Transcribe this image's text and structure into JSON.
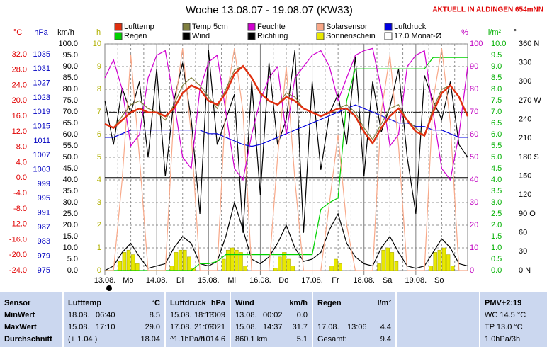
{
  "chart_data": {
    "type": "line",
    "title": "Woche 13.08.07 - 19.08.07 (KW33)",
    "note": "AKTUELL IN ALDINGEN 654mNN",
    "xlim": [
      0,
      168
    ],
    "xticks": [
      {
        "value": 0,
        "label": "13.08."
      },
      {
        "value": 24,
        "label": "14.08."
      },
      {
        "value": 48,
        "label": "15.08."
      },
      {
        "value": 72,
        "label": "16.08."
      },
      {
        "value": 96,
        "label": "17.08."
      },
      {
        "value": 120,
        "label": "18.08."
      },
      {
        "value": 144,
        "label": "19.08."
      }
    ],
    "weekdays": [
      "Mo",
      "Di",
      "Mi",
      "Do",
      "Fr",
      "Sa",
      "So"
    ],
    "xminor": [
      6,
      12,
      18,
      30,
      36,
      42,
      54,
      60,
      66,
      78,
      84,
      90,
      102,
      108,
      114,
      126,
      132,
      138,
      150,
      156,
      162
    ],
    "grid_axis": 3,
    "axes": [
      {
        "unit": "°C",
        "color": "#e00000",
        "lim": [
          -24,
          34.75
        ],
        "ticks": [
          {
            "value": 32,
            "label": "32.0"
          },
          {
            "value": 28,
            "label": "28.0"
          },
          {
            "value": 24,
            "label": "24.0"
          },
          {
            "value": 20,
            "label": "20.0"
          },
          {
            "value": 16,
            "label": "16.0"
          },
          {
            "value": 12,
            "label": "12.0"
          },
          {
            "value": 8,
            "label": "8.0"
          },
          {
            "value": 4,
            "label": "4.0"
          },
          {
            "value": 0,
            "label": "0.0"
          },
          {
            "value": -4,
            "label": "-4.0"
          },
          {
            "value": -8,
            "label": "-8.0"
          },
          {
            "value": -12,
            "label": "-12.0"
          },
          {
            "value": -16,
            "label": "-16.0"
          },
          {
            "value": -20,
            "label": "-20.0"
          },
          {
            "value": -24,
            "label": "-24.0"
          }
        ]
      },
      {
        "unit": "hPa",
        "color": "#0000c0",
        "lim": [
          975,
          1037.95
        ],
        "ticks": [
          1035,
          1031,
          1027,
          1023,
          1019,
          1015,
          1011,
          1007,
          1003,
          999,
          995,
          991,
          987,
          983,
          979,
          975
        ]
      },
      {
        "unit": "km/h",
        "color": "#000000",
        "lim": [
          0,
          100
        ],
        "ticks": [
          {
            "value": 100,
            "label": "100.0"
          },
          {
            "value": 95,
            "label": "95.0"
          },
          {
            "value": 90,
            "label": "90.0"
          },
          {
            "value": 85,
            "label": "85.0"
          },
          {
            "value": 80,
            "label": "80.0"
          },
          {
            "value": 75,
            "label": "75.0"
          },
          {
            "value": 70,
            "label": "70.0"
          },
          {
            "value": 65,
            "label": "65.0"
          },
          {
            "value": 60,
            "label": "60.0"
          },
          {
            "value": 55,
            "label": "55.0"
          },
          {
            "value": 50,
            "label": "50.0"
          },
          {
            "value": 45,
            "label": "45.0"
          },
          {
            "value": 40,
            "label": "40.0"
          },
          {
            "value": 35,
            "label": "35.0"
          },
          {
            "value": 30,
            "label": "30.0"
          },
          {
            "value": 25,
            "label": "25.0"
          },
          {
            "value": 20,
            "label": "20.0"
          },
          {
            "value": 15,
            "label": "15.0"
          },
          {
            "value": 10,
            "label": "10.0"
          },
          {
            "value": 5,
            "label": "5.0"
          },
          {
            "value": 0,
            "label": "0.0"
          }
        ]
      },
      {
        "unit": "h",
        "color": "#b0b000",
        "lim": [
          0,
          10
        ],
        "ticks": [
          10,
          9,
          8,
          7,
          6,
          5,
          4,
          3,
          2,
          1,
          0
        ]
      },
      {
        "unit": "%",
        "color": "#c000c0",
        "lim": [
          0,
          100
        ],
        "ticks": [
          100,
          90,
          80,
          70,
          60,
          50,
          40,
          30,
          20,
          10,
          0
        ]
      },
      {
        "unit": "l/m²",
        "color": "#00b000",
        "lim": [
          0,
          10
        ],
        "ticks": [
          {
            "value": 10,
            "label": "10.0"
          },
          {
            "value": 9.5,
            "label": "9.5"
          },
          {
            "value": 9,
            "label": "9.0"
          },
          {
            "value": 8.5,
            "label": "8.5"
          },
          {
            "value": 8,
            "label": "8.0"
          },
          {
            "value": 7.5,
            "label": "7.5"
          },
          {
            "value": 7,
            "label": "7.0"
          },
          {
            "value": 6.5,
            "label": "6.5"
          },
          {
            "value": 6,
            "label": "6.0"
          },
          {
            "value": 5.5,
            "label": "5.5"
          },
          {
            "value": 5,
            "label": "5.0"
          },
          {
            "value": 4.5,
            "label": "4.5"
          },
          {
            "value": 4,
            "label": "4.0"
          },
          {
            "value": 3.5,
            "label": "3.5"
          },
          {
            "value": 3,
            "label": "3.0"
          },
          {
            "value": 2.5,
            "label": "2.5"
          },
          {
            "value": 2,
            "label": "2.0"
          },
          {
            "value": 1.5,
            "label": "1.5"
          },
          {
            "value": 1,
            "label": "1.0"
          },
          {
            "value": 0.5,
            "label": "0.5"
          },
          {
            "value": 0,
            "label": "0.0"
          }
        ]
      },
      {
        "unit": "°",
        "color": "#000000",
        "lim": [
          0,
          360
        ],
        "ticks": [
          {
            "value": 360,
            "label": "360 N"
          },
          330,
          300,
          {
            "value": 270,
            "label": "270 W"
          },
          240,
          210,
          {
            "value": 180,
            "label": "180 S"
          },
          150,
          120,
          {
            "value": 90,
            "label": "90 O"
          },
          60,
          30,
          {
            "value": 0,
            "label": "0 N"
          }
        ]
      }
    ],
    "x": [
      0,
      4,
      8,
      12,
      16,
      20,
      24,
      28,
      32,
      36,
      40,
      44,
      48,
      52,
      56,
      60,
      64,
      68,
      72,
      76,
      80,
      84,
      88,
      92,
      96,
      100,
      104,
      108,
      112,
      116,
      120,
      124,
      128,
      132,
      136,
      140,
      144,
      148,
      152,
      156,
      160,
      164,
      168
    ],
    "series": [
      {
        "name": "Lufttemp",
        "color": "#e03010",
        "axis": 0,
        "values": [
          14,
          13,
          15,
          17,
          18,
          17,
          17,
          16,
          18,
          22,
          24,
          23,
          20,
          19,
          22,
          27,
          29,
          26,
          22,
          20,
          19,
          21,
          20,
          18,
          17,
          16,
          17,
          18,
          18,
          16,
          12,
          9,
          13,
          16,
          18,
          15,
          12,
          11,
          17,
          22,
          24,
          21,
          16
        ]
      },
      {
        "name": "Temp 5cm",
        "color": "#808040",
        "axis": 0,
        "values": [
          14,
          13,
          16,
          19,
          20,
          18,
          17,
          15,
          19,
          24,
          26,
          24,
          21,
          18,
          23,
          28,
          29,
          26,
          22,
          20,
          19,
          22,
          21,
          18,
          17,
          16,
          17,
          18,
          19,
          17,
          13,
          10,
          14,
          18,
          19,
          15,
          13,
          11,
          18,
          23,
          24,
          21,
          16
        ]
      },
      {
        "name": "Feuchte",
        "color": "#d000d0",
        "axis": 4,
        "values": [
          85,
          93,
          80,
          55,
          60,
          85,
          95,
          97,
          75,
          50,
          45,
          80,
          92,
          95,
          70,
          45,
          40,
          60,
          75,
          85,
          90,
          60,
          85,
          90,
          95,
          97,
          90,
          75,
          85,
          95,
          97,
          98,
          80,
          55,
          60,
          90,
          95,
          97,
          70,
          45,
          40,
          60,
          90
        ]
      },
      {
        "name": "Solarsensor",
        "color": "#f8a888",
        "axis": 4,
        "values": [
          0,
          0,
          40,
          95,
          50,
          0,
          0,
          0,
          70,
          98,
          60,
          0,
          0,
          0,
          75,
          98,
          70,
          0,
          0,
          0,
          50,
          90,
          40,
          0,
          0,
          0,
          30,
          60,
          20,
          0,
          0,
          0,
          70,
          95,
          55,
          0,
          0,
          0,
          75,
          98,
          65,
          0,
          0
        ]
      },
      {
        "name": "Luftdruck",
        "color": "#0000e0",
        "axis": 1,
        "values": [
          1012,
          1012,
          1013,
          1014,
          1014,
          1014,
          1014,
          1014,
          1014,
          1014,
          1014,
          1014,
          1013,
          1013,
          1012,
          1011,
          1010,
          1009.5,
          1010,
          1011,
          1012,
          1013,
          1014,
          1015,
          1016,
          1017,
          1018,
          1019,
          1020,
          1021,
          1020,
          1019,
          1018,
          1017,
          1016,
          1016,
          1015,
          1015,
          1014,
          1014,
          1013,
          1012,
          1012
        ]
      },
      {
        "name": "Regen",
        "color": "#00d000",
        "axis": 5,
        "values": [
          0,
          0,
          0,
          0,
          0,
          0,
          0,
          0,
          0,
          0,
          0,
          0.3,
          0.3,
          0.4,
          0.7,
          0.7,
          0.7,
          0.7,
          0.7,
          0.7,
          0.7,
          0.7,
          0.7,
          0.7,
          0.7,
          2.7,
          3.0,
          3.2,
          7.5,
          8.9,
          8.9,
          8.9,
          8.9,
          8.9,
          8.9,
          8.9,
          8.9,
          8.9,
          9.4,
          9.4,
          9.4,
          9.4,
          9.4
        ]
      },
      {
        "name": "Wind",
        "color": "#000000",
        "axis": 2,
        "values": [
          0,
          2,
          8,
          12,
          6,
          1,
          2,
          3,
          10,
          15,
          12,
          3,
          2,
          4,
          15,
          30,
          18,
          5,
          3,
          6,
          12,
          20,
          10,
          4,
          5,
          8,
          18,
          25,
          12,
          6,
          3,
          2,
          10,
          15,
          8,
          2,
          1,
          2,
          8,
          14,
          10,
          3,
          2
        ]
      },
      {
        "name": "Richtung",
        "color": "#000000",
        "axis": 6,
        "values": [
          270,
          200,
          290,
          250,
          300,
          180,
          320,
          150,
          270,
          330,
          240,
          90,
          350,
          200,
          240,
          280,
          60,
          300,
          120,
          330,
          200,
          240,
          350,
          60,
          300,
          160,
          250,
          280,
          200,
          340,
          150,
          300,
          220,
          260,
          320,
          180,
          90,
          310,
          270,
          240,
          300,
          200,
          180
        ]
      }
    ],
    "sun": {
      "name": "Sonnenschein",
      "color": "#e8e800",
      "axis": 3,
      "x": [
        7,
        9,
        11,
        13,
        15,
        17,
        31,
        33,
        35,
        37,
        39,
        41,
        55,
        57,
        59,
        61,
        63,
        65,
        79,
        81,
        83,
        85,
        87,
        89,
        103,
        105,
        107,
        109,
        111,
        113,
        127,
        129,
        131,
        133,
        135,
        137,
        151,
        153,
        155,
        157,
        159,
        161
      ],
      "values": [
        0.4,
        0.8,
        0.9,
        0.7,
        0.3,
        0,
        0.2,
        0.8,
        0.9,
        0.9,
        0.6,
        0.1,
        0.5,
        0.9,
        1.0,
        0.9,
        0.8,
        0.2,
        0.1,
        0.6,
        0.8,
        0.5,
        0.2,
        0,
        0,
        0.2,
        0.5,
        0.3,
        0,
        0,
        0.3,
        0.9,
        1.0,
        0.8,
        0.4,
        0,
        0.2,
        0.8,
        0.9,
        1.0,
        0.7,
        0.2
      ]
    },
    "monthly": {
      "name": "17.0 Monat-Ø",
      "color": "#303030",
      "axis": 0,
      "value": 17
    }
  },
  "stats": {
    "columns": [
      {
        "header": [
          "Sensor"
        ],
        "min": [
          "MinWert"
        ],
        "max": [
          "MaxWert"
        ],
        "avg": [
          "Durchschnitt"
        ]
      },
      {
        "header": [
          "Lufttemp",
          "°C"
        ],
        "min": [
          "18.08.",
          "06:40",
          "8.5"
        ],
        "max": [
          "15.08.",
          "17:10",
          "29.0"
        ],
        "avg": [
          "(+ 1.04 )",
          "18.04"
        ]
      },
      {
        "header": [
          "Luftdruck",
          "hPa"
        ],
        "min": [
          "15.08.",
          "18:13",
          "1009"
        ],
        "max": [
          "17.08.",
          "21:09",
          "1021"
        ],
        "avg": [
          "^1.1hPa/h",
          "1014.6"
        ]
      },
      {
        "header": [
          "Wind",
          "km/h"
        ],
        "min": [
          "13.08.",
          "00:02",
          "0.0"
        ],
        "max": [
          "15.08.",
          "14:37",
          "31.7"
        ],
        "avg": [
          "860.1 km",
          "5.1"
        ]
      },
      {
        "header": [
          "Regen",
          "l/m²"
        ],
        "max": [
          "17.08.",
          "13:06",
          "4.4"
        ],
        "avg": [
          "Gesamt:",
          "9.4"
        ]
      },
      {
        "header": [
          "PMV+2:19"
        ],
        "min": [
          "WC 14.5 °C"
        ],
        "max": [
          "TP 13.0 °C"
        ],
        "avg": [
          "1.0hPa/3h"
        ]
      }
    ]
  }
}
